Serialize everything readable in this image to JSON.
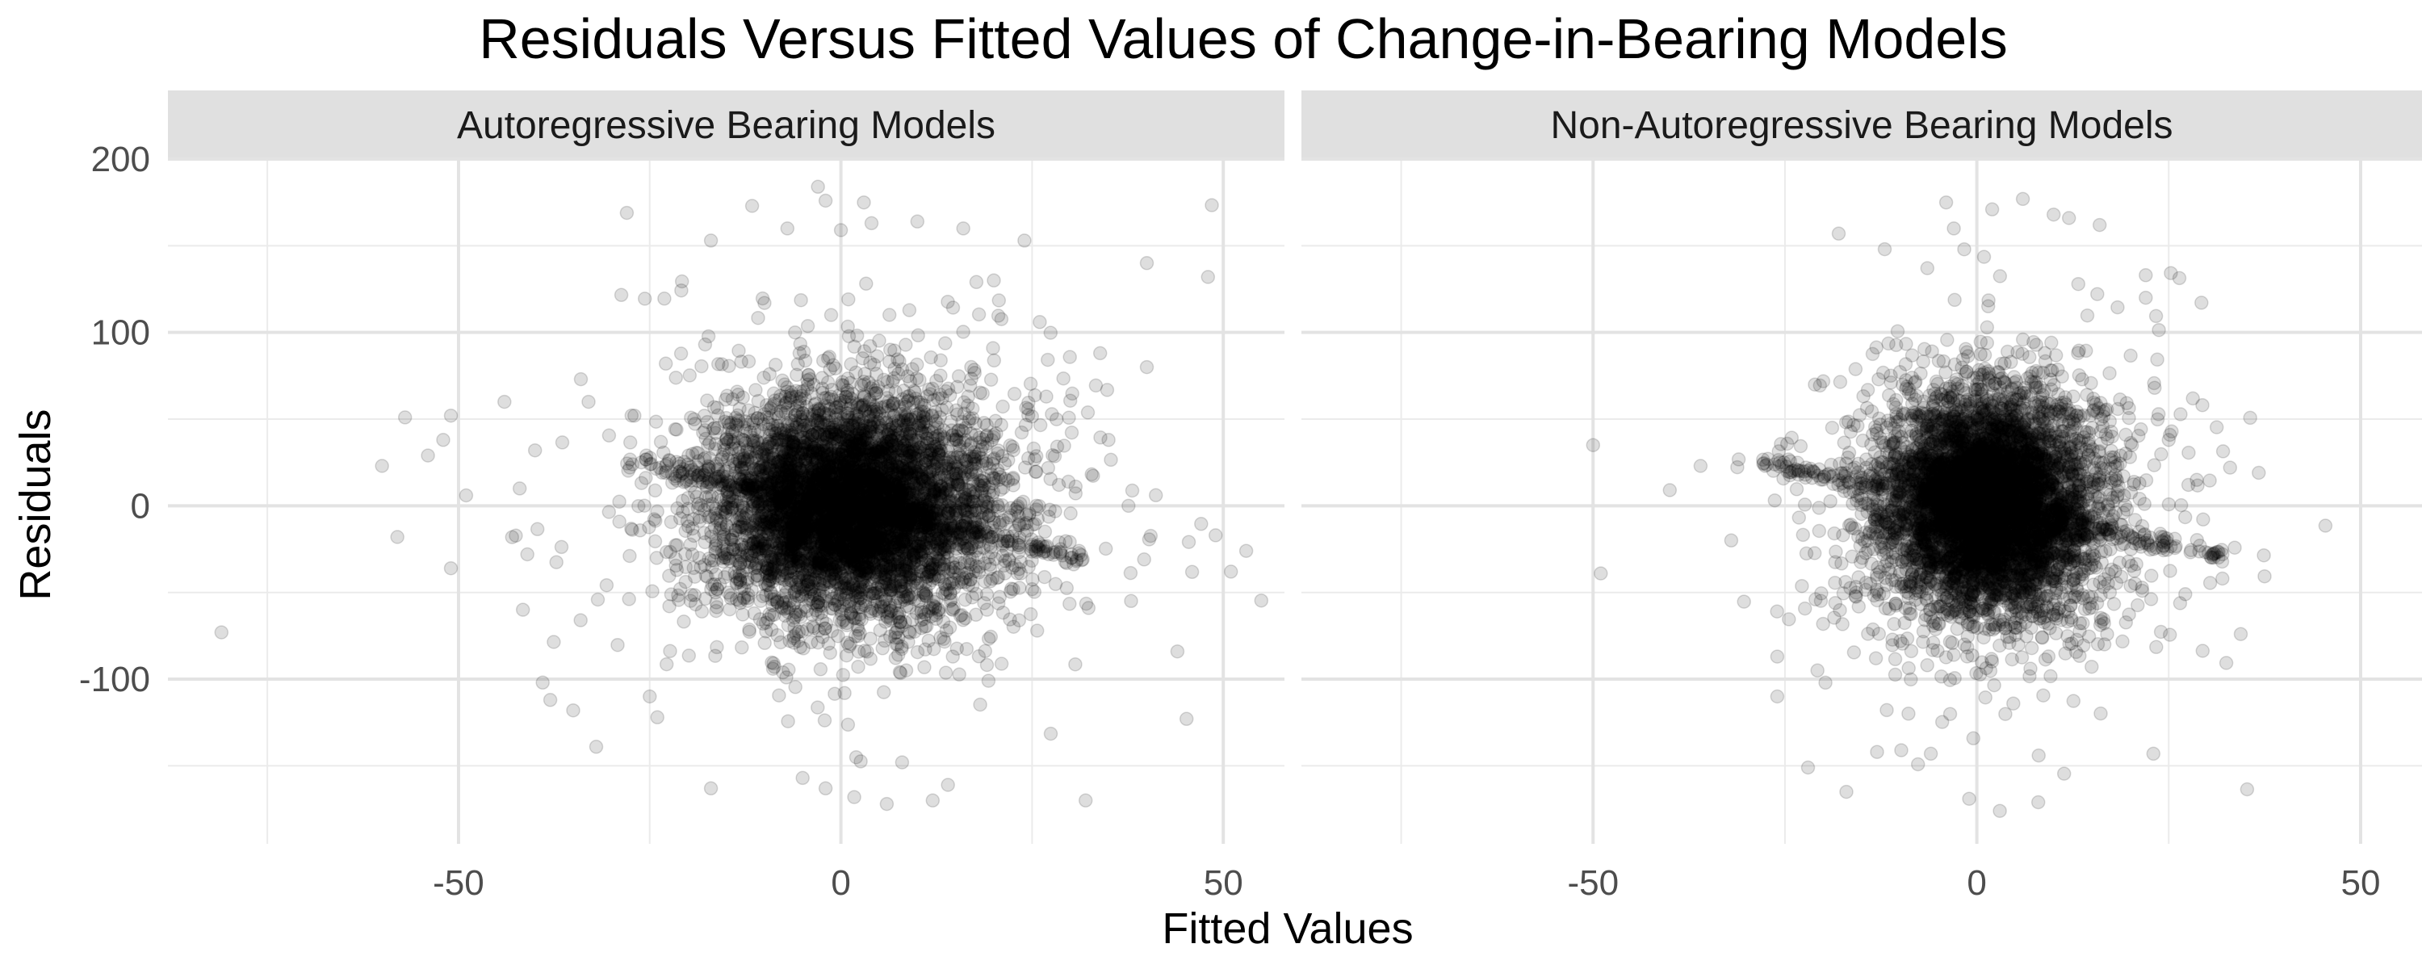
{
  "chart_data": {
    "type": "scatter",
    "title": "Residuals Versus Fitted Values of Change-in-Bearing Models",
    "xlabel": "Fitted Values",
    "ylabel": "Residuals",
    "xlim": [
      -88,
      58
    ],
    "ylim": [
      -195,
      200
    ],
    "x_ticks": [
      -50,
      0,
      50
    ],
    "x_tick_labels": [
      "-50",
      "0",
      "50"
    ],
    "y_ticks": [
      -100,
      0,
      100,
      200
    ],
    "y_tick_labels": [
      "-100",
      "0",
      "100",
      "200"
    ],
    "grid": true,
    "point_color": "#000000",
    "point_opacity": 0.13,
    "facets": [
      {
        "strip_label": "Autoregressive Bearing Models",
        "approx_point_count": 6000,
        "core_spread_x": 9,
        "core_spread_y": 32,
        "points": [
          [
            -81,
            -73
          ],
          [
            -60,
            23
          ],
          [
            -58,
            -18
          ],
          [
            -57,
            51
          ],
          [
            -54,
            29
          ],
          [
            -52,
            38
          ],
          [
            -51,
            52
          ],
          [
            -51,
            -36
          ],
          [
            -49,
            6
          ],
          [
            -44,
            60
          ],
          [
            -42,
            10
          ],
          [
            -41,
            -28
          ],
          [
            -40,
            32
          ],
          [
            -39,
            -102
          ],
          [
            -38,
            -112
          ],
          [
            -35,
            -118
          ],
          [
            -34,
            73
          ],
          [
            -33,
            60
          ],
          [
            -32,
            -139
          ],
          [
            -28,
            169
          ],
          [
            -27,
            52
          ],
          [
            -25,
            -110
          ],
          [
            -24,
            -122
          ],
          [
            -17,
            153
          ],
          [
            -17,
            -163
          ],
          [
            -10,
            117
          ],
          [
            -7,
            160
          ],
          [
            -6,
            100
          ],
          [
            -5,
            -157
          ],
          [
            -3,
            184
          ],
          [
            -2,
            176
          ],
          [
            -2,
            -163
          ],
          [
            0,
            159
          ],
          [
            2,
            -145
          ],
          [
            3,
            175
          ],
          [
            4,
            163
          ],
          [
            6,
            -172
          ],
          [
            8,
            -148
          ],
          [
            10,
            164
          ],
          [
            12,
            -170
          ],
          [
            14,
            -161
          ],
          [
            16,
            160
          ],
          [
            20,
            130
          ],
          [
            24,
            153
          ],
          [
            26,
            106
          ],
          [
            32,
            -170
          ],
          [
            35,
            38
          ],
          [
            40,
            140
          ],
          [
            40,
            80
          ],
          [
            44,
            -84
          ],
          [
            48,
            132
          ],
          [
            49,
            -17
          ],
          [
            51,
            -38
          ],
          [
            53,
            -26
          ]
        ]
      },
      {
        "strip_label": "Non-Autoregressive Bearing Models",
        "approx_point_count": 6000,
        "core_spread_x": 7,
        "core_spread_y": 32,
        "points": [
          [
            -50,
            35
          ],
          [
            -49,
            -39
          ],
          [
            -40,
            9
          ],
          [
            -36,
            23
          ],
          [
            -32,
            -20
          ],
          [
            -26,
            -87
          ],
          [
            -26,
            -110
          ],
          [
            -22,
            -151
          ],
          [
            -18,
            157
          ],
          [
            -17,
            -165
          ],
          [
            -13,
            -142
          ],
          [
            -12,
            148
          ],
          [
            -6,
            -143
          ],
          [
            -4,
            175
          ],
          [
            -3,
            160
          ],
          [
            -1,
            -169
          ],
          [
            2,
            171
          ],
          [
            3,
            -176
          ],
          [
            6,
            177
          ],
          [
            8,
            -171
          ],
          [
            10,
            168
          ],
          [
            12,
            166
          ],
          [
            16,
            162
          ],
          [
            22,
            120
          ],
          [
            22,
            133
          ],
          [
            23,
            -143
          ],
          [
            25,
            38
          ],
          [
            32,
            -42
          ],
          [
            33,
            22
          ]
        ]
      }
    ]
  }
}
